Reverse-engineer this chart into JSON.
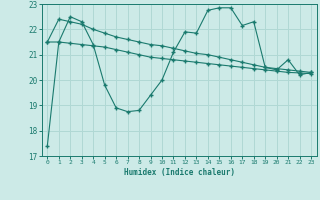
{
  "xlabel": "Humidex (Indice chaleur)",
  "bg_color": "#cceae7",
  "grid_color": "#b0d8d4",
  "line_color": "#1a7a6e",
  "ylim": [
    17,
    23
  ],
  "xlim": [
    -0.5,
    23.5
  ],
  "yticks": [
    17,
    18,
    19,
    20,
    21,
    22,
    23
  ],
  "xticks": [
    0,
    1,
    2,
    3,
    4,
    5,
    6,
    7,
    8,
    9,
    10,
    11,
    12,
    13,
    14,
    15,
    16,
    17,
    18,
    19,
    20,
    21,
    22,
    23
  ],
  "line1_x": [
    0,
    1,
    2,
    3,
    4,
    5,
    6,
    7,
    8,
    9,
    10,
    11,
    12,
    13,
    14,
    15,
    16,
    17,
    18,
    19,
    20,
    21,
    22,
    23
  ],
  "line1_y": [
    17.4,
    21.5,
    22.5,
    22.3,
    21.4,
    19.8,
    18.9,
    18.75,
    18.8,
    19.4,
    20.0,
    21.1,
    21.9,
    21.85,
    22.75,
    22.85,
    22.85,
    22.15,
    22.3,
    20.5,
    20.4,
    20.8,
    20.2,
    20.3
  ],
  "line2_x": [
    0,
    1,
    2,
    3,
    4,
    5,
    6,
    7,
    8,
    9,
    10,
    11,
    12,
    13,
    14,
    15,
    16,
    17,
    18,
    19,
    20,
    21,
    22,
    23
  ],
  "line2_y": [
    21.5,
    22.4,
    22.3,
    22.2,
    22.0,
    21.85,
    21.7,
    21.6,
    21.5,
    21.4,
    21.35,
    21.25,
    21.15,
    21.05,
    21.0,
    20.9,
    20.8,
    20.7,
    20.6,
    20.5,
    20.45,
    20.4,
    20.35,
    20.3
  ],
  "line3_x": [
    0,
    1,
    2,
    3,
    4,
    5,
    6,
    7,
    8,
    9,
    10,
    11,
    12,
    13,
    14,
    15,
    16,
    17,
    18,
    19,
    20,
    21,
    22,
    23
  ],
  "line3_y": [
    21.5,
    21.5,
    21.45,
    21.4,
    21.35,
    21.3,
    21.2,
    21.1,
    21.0,
    20.9,
    20.85,
    20.8,
    20.75,
    20.7,
    20.65,
    20.6,
    20.55,
    20.5,
    20.45,
    20.4,
    20.35,
    20.3,
    20.28,
    20.25
  ]
}
